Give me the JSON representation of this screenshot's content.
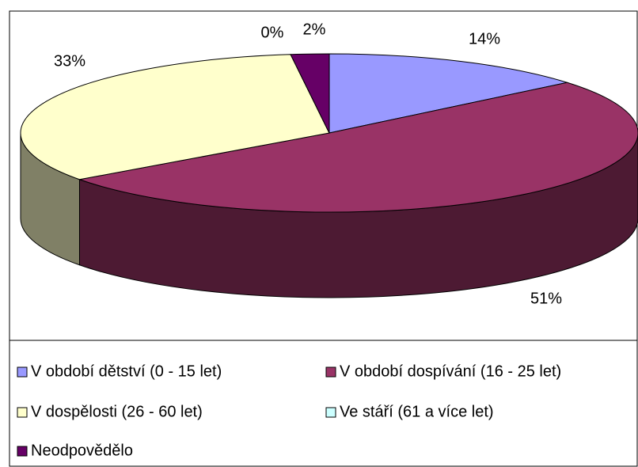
{
  "chart_data": {
    "type": "pie3d",
    "categories": [
      "V období dětství (0 - 15 let)",
      "V období dospívání (16 - 25 let)",
      "V dospělosti (26 - 60 let)",
      "Ve stáří (61 a více let)",
      "Neodpovědělo"
    ],
    "values": [
      14,
      51,
      33,
      0,
      2
    ],
    "value_labels": [
      "14%",
      "51%",
      "33%",
      "0%",
      "2%"
    ],
    "colors": [
      "#9999ff",
      "#993366",
      "#ffffcc",
      "#ccffff",
      "#660066"
    ],
    "legend": "bottom"
  }
}
